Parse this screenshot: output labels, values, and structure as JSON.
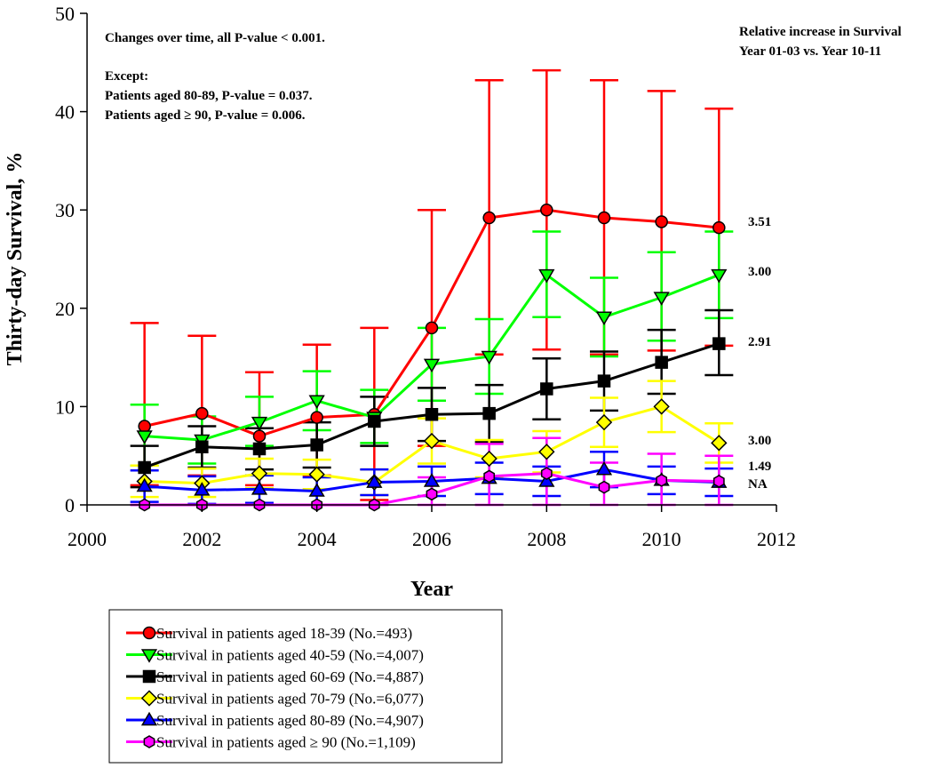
{
  "chart_data": {
    "type": "line",
    "title": "",
    "xlabel": "Year",
    "ylabel": "Thirty-day Survival, %",
    "xlim": [
      2000,
      2012
    ],
    "ylim": [
      0,
      50
    ],
    "xticks": [
      "2000",
      "2002",
      "2004",
      "2006",
      "2008",
      "2010",
      "2012"
    ],
    "yticks": [
      "0",
      "10",
      "20",
      "30",
      "40",
      "50"
    ],
    "grid": false,
    "legend_position": "bottom",
    "x": [
      2001,
      2002,
      2003,
      2004,
      2005,
      2006,
      2007,
      2008,
      2009,
      2010,
      2011
    ],
    "series": [
      {
        "name": "Survival in patients aged 18-39 (No.=493)",
        "color": "#ff0000",
        "marker": "circle",
        "fill": "#ff0000",
        "values": [
          8.0,
          9.3,
          7.0,
          8.9,
          9.2,
          18.0,
          29.2,
          30.0,
          29.2,
          28.8,
          28.2
        ],
        "upper": [
          18.5,
          17.2,
          13.5,
          16.3,
          18.0,
          30.0,
          43.2,
          44.2,
          43.2,
          42.1,
          40.3
        ],
        "lower": [
          2.0,
          3.0,
          2.0,
          3.0,
          0.5,
          6.0,
          15.3,
          15.8,
          15.3,
          15.7,
          16.2
        ],
        "end_label": "3.51"
      },
      {
        "name": "Survival in patients aged 40-59 (No.=4,007)",
        "color": "#00ff00",
        "marker": "triangle-down",
        "fill": "#00ff00",
        "values": [
          7.0,
          6.6,
          8.4,
          10.6,
          8.9,
          14.3,
          15.1,
          23.4,
          19.1,
          21.1,
          23.4
        ],
        "upper": [
          10.2,
          9.0,
          11.0,
          13.6,
          11.7,
          18.0,
          18.9,
          27.8,
          23.1,
          25.7,
          27.8
        ],
        "lower": [
          4.0,
          4.2,
          6.0,
          7.6,
          6.3,
          10.6,
          11.3,
          19.1,
          15.1,
          16.7,
          19.0
        ],
        "end_label": "3.00"
      },
      {
        "name": "Survival in patients aged 60-69 (No.=4,887)",
        "color": "#000000",
        "marker": "square",
        "fill": "#000000",
        "values": [
          3.8,
          5.9,
          5.7,
          6.1,
          8.5,
          9.2,
          9.3,
          11.8,
          12.6,
          14.5,
          16.4
        ],
        "upper": [
          6.0,
          8.0,
          7.8,
          8.4,
          11.0,
          11.9,
          12.2,
          14.9,
          15.6,
          17.8,
          19.8
        ],
        "lower": [
          1.8,
          3.8,
          3.6,
          3.8,
          6.0,
          6.5,
          6.4,
          8.7,
          9.6,
          11.3,
          13.2
        ],
        "end_label": "2.91"
      },
      {
        "name": "Survival in patients aged 70-79 (No.=6,077)",
        "color": "#ffff00",
        "marker": "diamond",
        "fill": "#ffff00",
        "values": [
          2.4,
          2.2,
          3.2,
          3.1,
          2.3,
          6.5,
          4.7,
          5.4,
          8.4,
          10.0,
          6.3
        ],
        "upper": [
          4.0,
          3.7,
          4.7,
          4.6,
          3.6,
          8.8,
          6.6,
          7.5,
          10.9,
          12.6,
          8.3
        ],
        "lower": [
          0.8,
          0.8,
          1.7,
          1.6,
          1.0,
          4.2,
          2.8,
          3.3,
          5.9,
          7.4,
          4.3
        ],
        "end_label": "3.00"
      },
      {
        "name": "Survival in patients aged 80-89 (No.=4,907)",
        "color": "#0000ff",
        "marker": "triangle-up",
        "fill": "#0000ff",
        "values": [
          1.9,
          1.5,
          1.6,
          1.4,
          2.3,
          2.4,
          2.7,
          2.4,
          3.6,
          2.5,
          2.3
        ],
        "upper": [
          3.5,
          2.9,
          3.0,
          2.8,
          3.6,
          3.9,
          4.3,
          3.9,
          5.4,
          3.9,
          3.7
        ],
        "lower": [
          0.3,
          0.1,
          0.2,
          0.0,
          1.0,
          0.9,
          1.1,
          0.9,
          1.8,
          1.1,
          0.9
        ],
        "end_label": "1.49"
      },
      {
        "name": "Survival in patients aged ≥ 90 (No.=1,109)",
        "color": "#ff00ff",
        "marker": "hexagon",
        "fill": "#ff00ff",
        "values": [
          0.0,
          0.0,
          0.0,
          0.0,
          0.0,
          1.1,
          2.9,
          3.2,
          1.8,
          2.5,
          2.4
        ],
        "upper": [
          0.0,
          0.0,
          0.0,
          0.0,
          0.0,
          2.8,
          6.2,
          6.8,
          4.3,
          5.2,
          5.0
        ],
        "lower": [
          0.0,
          0.0,
          0.0,
          0.0,
          0.0,
          0.0,
          0.0,
          0.0,
          0.0,
          0.0,
          0.0
        ],
        "end_label": "NA"
      }
    ],
    "annotations": {
      "left_lines": [
        "Changes over time, all P-value < 0.001.",
        "Except:",
        "Patients aged 80-89, P-value = 0.037.",
        "Patients aged ≥ 90, P-value = 0.006."
      ],
      "right_lines": [
        "Relative increase in Survival",
        "Year 01-03 vs. Year 10-11"
      ]
    }
  }
}
